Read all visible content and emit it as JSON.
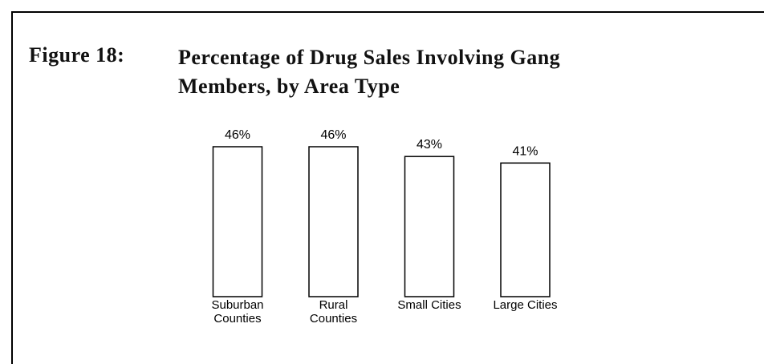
{
  "chart_data": {
    "type": "bar",
    "figure_label": "Figure 18:",
    "title": "Percentage of Drug Sales Involving Gang Members, by Area Type",
    "categories": [
      "Suburban\nCounties",
      "Rural\nCounties",
      "Small Cities",
      "Large Cities"
    ],
    "values": [
      46,
      46,
      43,
      41
    ],
    "value_labels": [
      "46%",
      "46%",
      "43%",
      "41%"
    ],
    "color": "#ffffff"
  }
}
